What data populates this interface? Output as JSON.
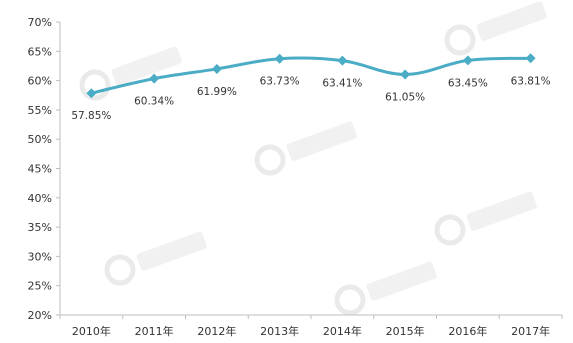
{
  "chart_data": {
    "type": "line",
    "title": "",
    "xlabel": "",
    "ylabel": "",
    "categories": [
      "2010年",
      "2011年",
      "2012年",
      "2013年",
      "2014年",
      "2015年",
      "2016年",
      "2017年"
    ],
    "series": [
      {
        "values": [
          57.85,
          60.34,
          61.99,
          63.73,
          63.41,
          61.05,
          63.45,
          63.81
        ],
        "labels": [
          "57.85%",
          "60.34%",
          "61.99%",
          "63.73%",
          "63.41%",
          "61.05%",
          "63.45%",
          "63.81%"
        ],
        "color": "#4bacc6"
      }
    ],
    "ylim": [
      20,
      70
    ],
    "y_ticks": [
      20,
      25,
      30,
      35,
      40,
      45,
      50,
      55,
      60,
      65,
      70
    ],
    "y_tick_labels": [
      "20%",
      "25%",
      "30%",
      "35%",
      "40%",
      "45%",
      "50%",
      "55%",
      "60%",
      "65%",
      "70%"
    ],
    "grid": false,
    "legend": "none"
  }
}
